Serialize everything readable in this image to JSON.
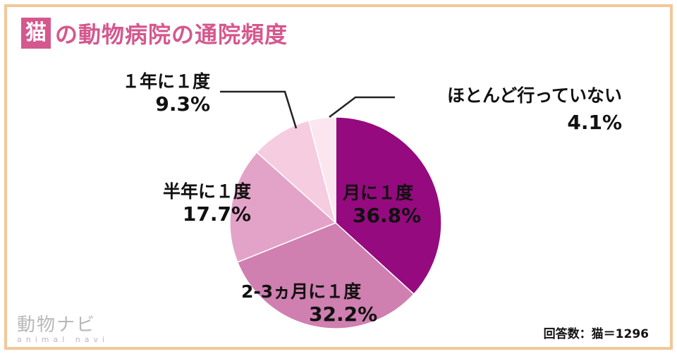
{
  "title": {
    "badge": "猫",
    "text": "の動物病院の通院頻度"
  },
  "chart_data": {
    "type": "pie",
    "start_angle_deg": 0,
    "direction": "clockwise",
    "slices": [
      {
        "label": "月に１度",
        "value": 36.8,
        "value_text": "36.8%",
        "color": "#950a7e"
      },
      {
        "label": "2-3ヵ月に１度",
        "value": 32.2,
        "value_text": "32.2%",
        "color": "#cf7fb0"
      },
      {
        "label": "半年に１度",
        "value": 17.7,
        "value_text": "17.7%",
        "color": "#e3a3c8"
      },
      {
        "label": "１年に１度",
        "value": 9.3,
        "value_text": "9.3%",
        "color": "#f5cce0"
      },
      {
        "label": "ほとんど行っていない",
        "value": 4.1,
        "value_text": "4.1%",
        "color": "#fbe6ef"
      }
    ],
    "note": "回答数：猫＝1296"
  },
  "logo": {
    "main": "動物ナビ",
    "sub": "animal navi"
  }
}
